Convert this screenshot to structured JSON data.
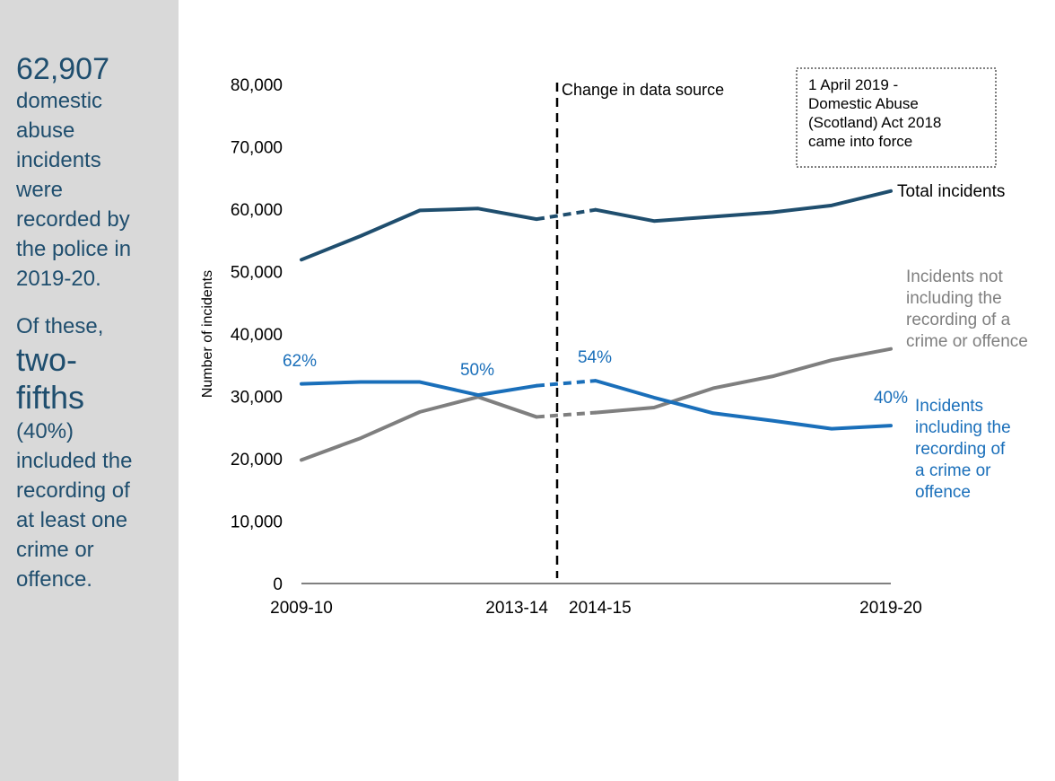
{
  "sidebar": {
    "headline_number": "62,907",
    "headline_text": "domestic abuse incidents were recorded by the police in 2019-20.",
    "of_these": "Of these,",
    "emphasis": "two-fifths",
    "detail": "(40%) included the recording of at least one crime or offence.",
    "text_color": "#1f4e6e",
    "background": "#d9d9d9"
  },
  "chart_data": {
    "type": "line",
    "title": "",
    "xlabel": "",
    "ylabel": "Number of incidents",
    "ylim": [
      0,
      80000
    ],
    "yticks": [
      "0",
      "10,000",
      "20,000",
      "30,000",
      "40,000",
      "50,000",
      "60,000",
      "70,000",
      "80,000"
    ],
    "yticks_values": [
      0,
      10000,
      20000,
      30000,
      40000,
      50000,
      60000,
      70000,
      80000
    ],
    "x": [
      "2009-10",
      "2010-11",
      "2011-12",
      "2012-13",
      "2013-14",
      "2014-15",
      "2015-16",
      "2016-17",
      "2017-18",
      "2018-19",
      "2019-20"
    ],
    "xtick_labels_shown": [
      "2009-10",
      "2013-14",
      "2014-15",
      "2019-20"
    ],
    "grid": false,
    "series": [
      {
        "name": "Total incidents",
        "color": "#1f4e6e",
        "values": [
          51900,
          55700,
          59800,
          60100,
          58400,
          59900,
          58100,
          58800,
          59500,
          60600,
          62907
        ]
      },
      {
        "name": "Incidents including the recording of a crime or offence",
        "color": "#1a6fba",
        "values": [
          32000,
          32300,
          32300,
          30200,
          31700,
          32500,
          29800,
          27300,
          26100,
          24800,
          25300
        ]
      },
      {
        "name": "Incidents not including the recording of a crime or offence",
        "color": "#7f7f7f",
        "values": [
          19800,
          23300,
          27500,
          29900,
          26700,
          27400,
          28200,
          31300,
          33200,
          35800,
          37600
        ]
      }
    ],
    "series_labels": {
      "total": "Total incidents",
      "not_including": "Incidents not including the recording of a crime or offence",
      "including": "Incidents including the recording of a crime or offence"
    },
    "percent_labels": [
      {
        "series": 1,
        "index": 0,
        "text": "62%"
      },
      {
        "series": 1,
        "index": 3,
        "text": "50%"
      },
      {
        "series": 1,
        "index": 5,
        "text": "54%"
      },
      {
        "series": 1,
        "index": 10,
        "text": "40%"
      }
    ],
    "annotations": {
      "change_label": "Change in data source",
      "act_note": "1 April 2019 - Domestic Abuse (Scotland) Act 2018 came into force"
    }
  }
}
